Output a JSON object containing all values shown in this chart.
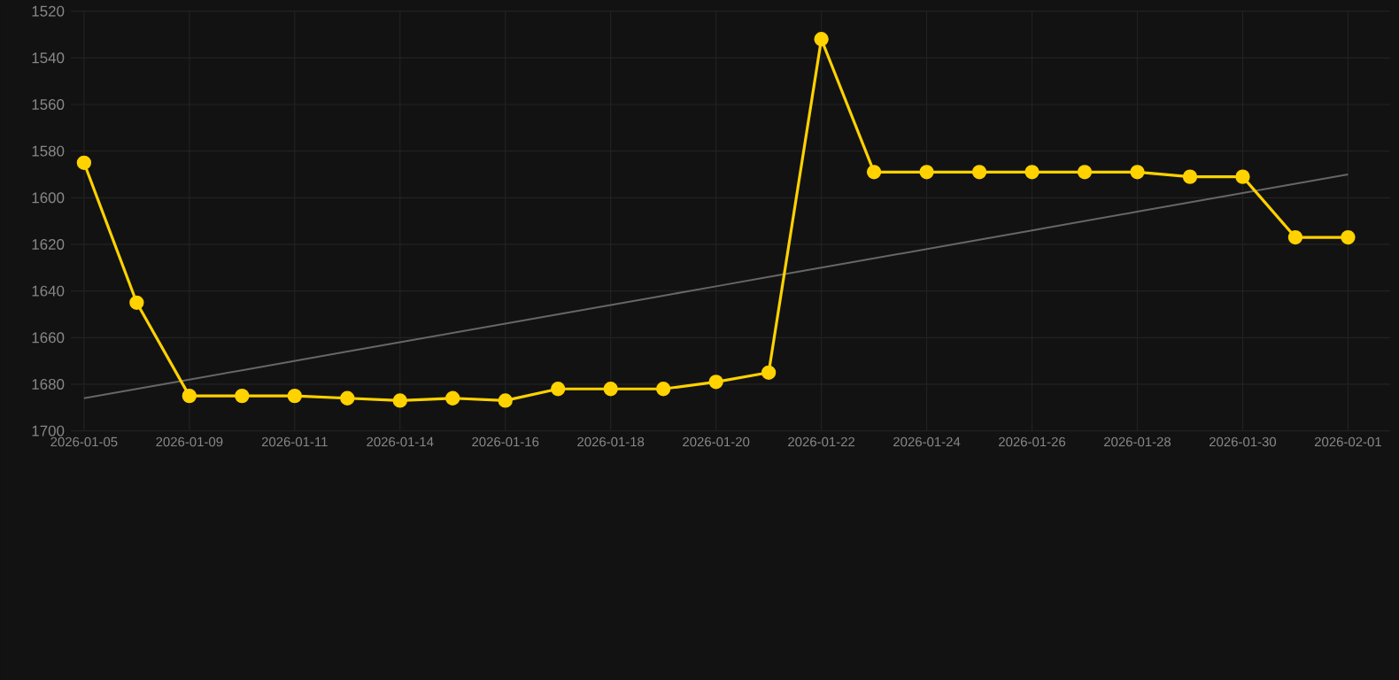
{
  "chart_data": {
    "type": "line",
    "categories": [
      "2026-01-05",
      null,
      "2026-01-09",
      null,
      "2026-01-11",
      null,
      "2026-01-14",
      null,
      "2026-01-16",
      null,
      "2026-01-18",
      null,
      "2026-01-20",
      null,
      "2026-01-22",
      null,
      "2026-01-24",
      null,
      "2026-01-26",
      null,
      "2026-01-28",
      null,
      "2026-01-30",
      null,
      "2026-02-01"
    ],
    "series": [
      {
        "color": "#ffd200",
        "marker": "circle",
        "values": [
          1585,
          1645,
          1685,
          1685,
          1685,
          1686,
          1687,
          1686,
          1687,
          1682,
          1682,
          1682,
          1679,
          1675,
          1532,
          1589,
          1589,
          1589,
          1589,
          1589,
          1589,
          1591,
          1591,
          1617,
          1617
        ]
      },
      {
        "color": "#666666",
        "marker": "none",
        "values": [
          1686,
          1682,
          1678,
          1674,
          1670,
          1666,
          1662,
          1658,
          1654,
          1650,
          1646,
          1642,
          1638,
          1634,
          1630,
          1626,
          1622,
          1618,
          1614,
          1610,
          1606,
          1602,
          1598,
          1594,
          1590
        ]
      }
    ],
    "ylim": [
      1700,
      1520
    ],
    "yticks": [
      1520,
      1540,
      1560,
      1580,
      1600,
      1620,
      1640,
      1660,
      1680,
      1700
    ],
    "grid": true,
    "line_style": "solid"
  }
}
